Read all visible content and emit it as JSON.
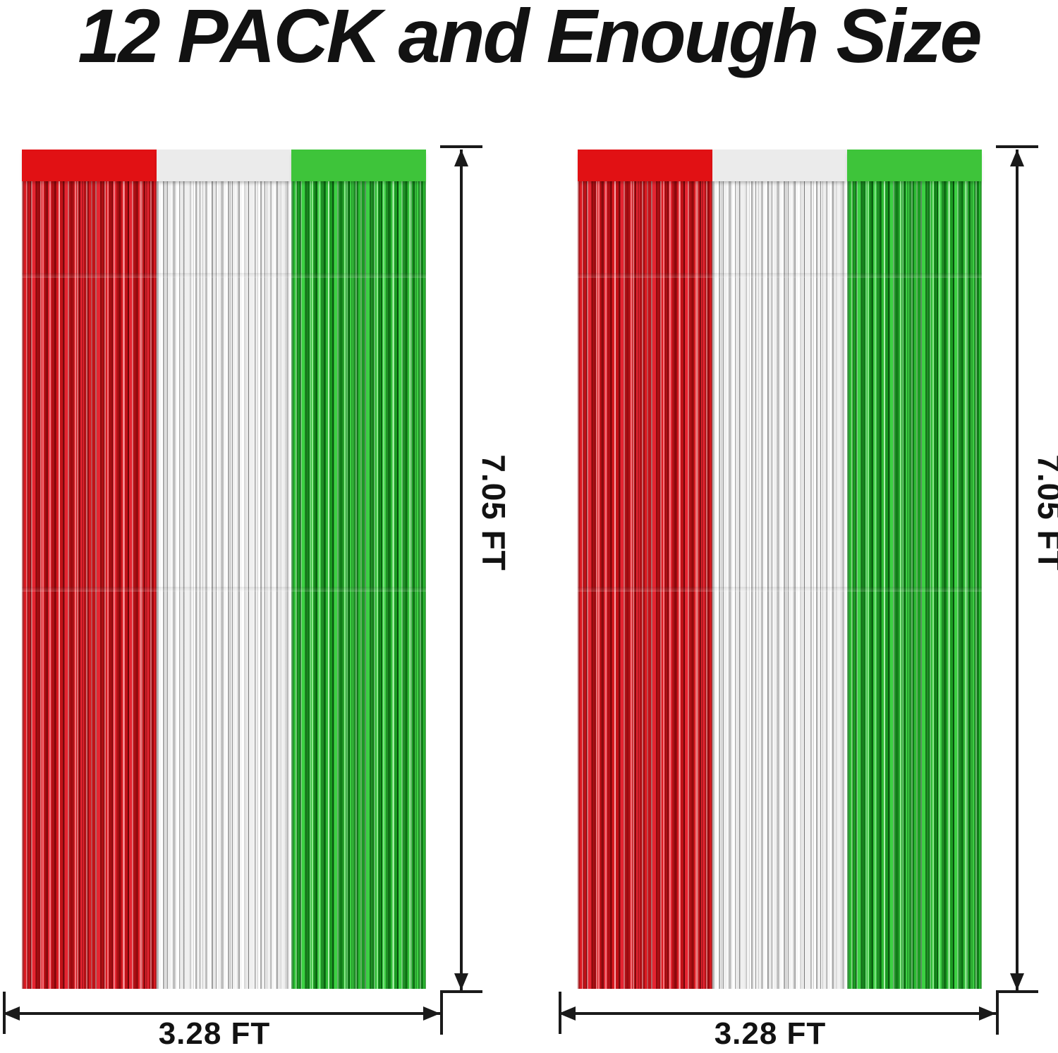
{
  "title": "12 PACK and Enough Size",
  "curtains": [
    {
      "name": "left curtain",
      "height_label": "7.05 FT",
      "width_label": "3.28 FT",
      "stripe_colors": [
        "red",
        "silver",
        "green"
      ]
    },
    {
      "name": "right curtain",
      "height_label": "7.05 FT",
      "width_label": "3.28 FT",
      "stripe_colors": [
        "red",
        "silver",
        "green"
      ]
    }
  ],
  "colors": {
    "red_band": "#e11114",
    "silver_band": "#ebebeb",
    "green_band": "#3ec43a",
    "dimension_lines": "#1a1a1a",
    "title_text": "#121212",
    "background": "#ffffff"
  }
}
